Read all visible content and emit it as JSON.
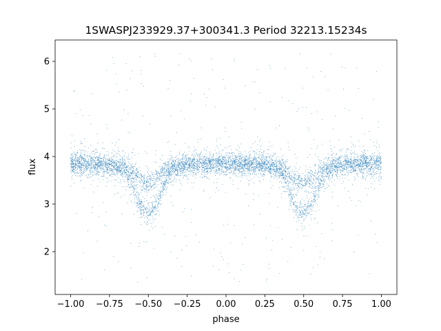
{
  "chart_data": {
    "type": "scatter",
    "title": "1SWASPJ233929.37+300341.3 Period 32213.15234s",
    "xlabel": "phase",
    "ylabel": "flux",
    "xlim": [
      -1.1,
      1.1
    ],
    "ylim": [
      1.1,
      6.45
    ],
    "x_ticks": [
      -1.0,
      -0.75,
      -0.5,
      -0.25,
      0.0,
      0.25,
      0.5,
      0.75,
      1.0
    ],
    "x_tick_labels": [
      "−1.00",
      "−0.75",
      "−0.50",
      "−0.25",
      "0.00",
      "0.25",
      "0.50",
      "0.75",
      "1.00"
    ],
    "y_ticks": [
      2,
      3,
      4,
      5,
      6
    ],
    "y_tick_labels": [
      "2",
      "3",
      "4",
      "5",
      "6"
    ],
    "grid": false,
    "marker_color": "#1f77b4",
    "profile": {
      "phase": [
        -1.0,
        -0.75,
        -0.65,
        -0.6,
        -0.55,
        -0.5,
        -0.45,
        -0.4,
        -0.35,
        -0.25,
        0.0,
        0.25,
        0.35,
        0.4,
        0.45,
        0.5,
        0.55,
        0.6,
        0.65,
        0.75,
        1.0
      ],
      "flux_upper_branch": [
        3.85,
        3.82,
        3.78,
        3.68,
        3.52,
        3.45,
        3.52,
        3.7,
        3.8,
        3.83,
        3.85,
        3.83,
        3.78,
        3.66,
        3.52,
        3.45,
        3.5,
        3.68,
        3.78,
        3.83,
        3.85
      ],
      "flux_lower_branch": [
        3.85,
        3.82,
        3.7,
        3.35,
        2.95,
        2.78,
        2.98,
        3.38,
        3.72,
        3.83,
        3.85,
        3.83,
        3.7,
        3.32,
        2.95,
        2.78,
        2.98,
        3.38,
        3.7,
        3.83,
        3.85
      ],
      "scatter_sigma": 0.11,
      "outlier_range": [
        1.35,
        6.2
      ]
    }
  }
}
